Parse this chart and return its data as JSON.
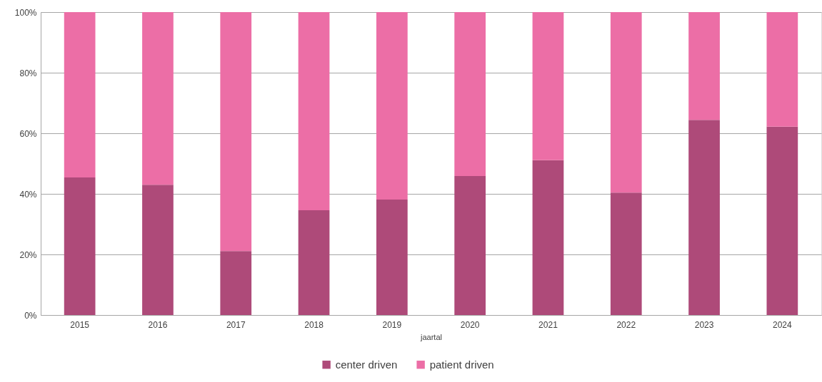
{
  "chart_data": {
    "type": "bar",
    "stacked": true,
    "xlabel": "jaartal",
    "categories": [
      "2015",
      "2016",
      "2017",
      "2018",
      "2019",
      "2020",
      "2021",
      "2022",
      "2023",
      "2024"
    ],
    "series": [
      {
        "name": "center driven",
        "color": "#ae4a79",
        "values": [
          45.4,
          43.0,
          21.1,
          34.6,
          38.1,
          45.9,
          51.1,
          40.4,
          64.4,
          62.2
        ]
      },
      {
        "name": "patient driven",
        "color": "#ec6ea6",
        "values": [
          54.6,
          57.0,
          78.9,
          65.4,
          61.9,
          54.1,
          48.9,
          59.6,
          35.6,
          37.8
        ]
      }
    ],
    "ylim": [
      0,
      100
    ],
    "yticks": [
      {
        "value": 0,
        "label": "0%"
      },
      {
        "value": 20,
        "label": "20%"
      },
      {
        "value": 40,
        "label": "40%"
      },
      {
        "value": 60,
        "label": "60%"
      },
      {
        "value": 80,
        "label": "80%"
      },
      {
        "value": 100,
        "label": "100%"
      }
    ],
    "grid": "y",
    "legend": "bottom"
  }
}
